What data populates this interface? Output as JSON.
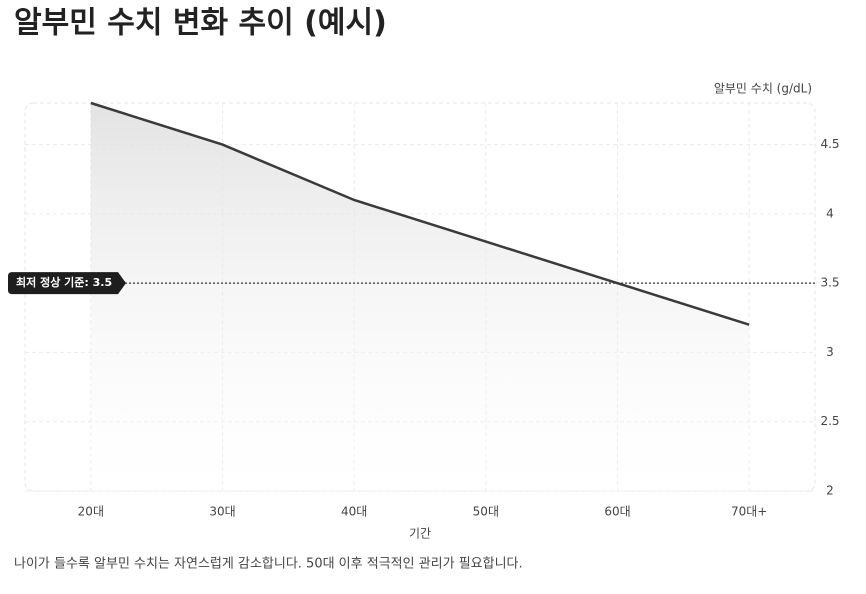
{
  "chart_data": {
    "type": "line",
    "title": "알부민 수치 변화 추이 (예시)",
    "y_label": "알부민 수치 (g/dL)",
    "x_label": "기간",
    "caption": "나이가 들수록 알부민 수치는 자연스럽게 감소합니다. 50대 이후 적극적인 관리가 필요합니다.",
    "categories": [
      "20대",
      "30대",
      "40대",
      "50대",
      "60대",
      "70대+"
    ],
    "series": [
      {
        "name": "알부민 수치",
        "color": "#3a3a3a",
        "values": [
          4.8,
          4.5,
          4.1,
          3.8,
          3.5,
          3.2
        ]
      }
    ],
    "ylim": [
      2,
      4.8
    ],
    "yticks": [
      2,
      2.5,
      3,
      3.5,
      4,
      4.5
    ],
    "grid": true,
    "reference_line": {
      "value": 3.5,
      "label": "최저 정상 기준: 3.5"
    }
  }
}
